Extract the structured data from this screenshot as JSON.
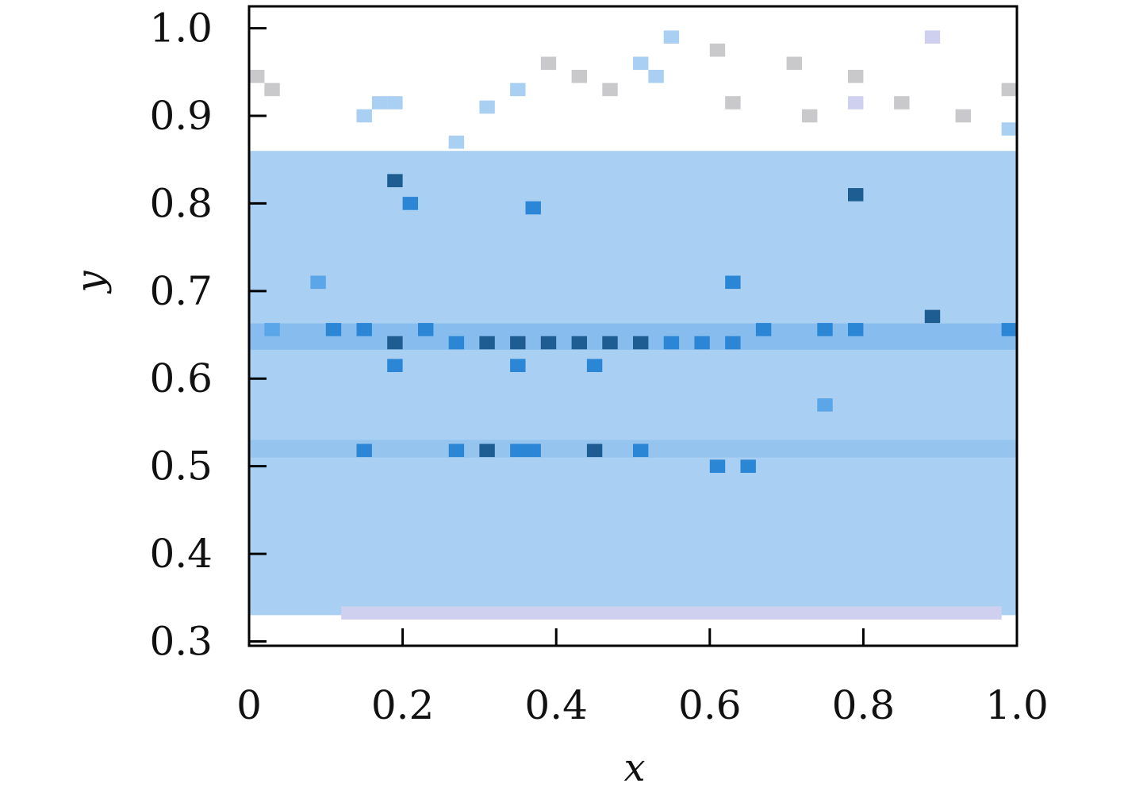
{
  "chart_data": {
    "type": "heatmap",
    "title": "",
    "xlabel": "x",
    "ylabel": "y",
    "xlim": [
      0.0,
      1.0
    ],
    "ylim": [
      0.295,
      1.025
    ],
    "x_ticks": [
      0.0,
      0.2,
      0.4,
      0.6,
      0.8,
      1.0
    ],
    "x_tick_labels": [
      "0",
      "0.2",
      "0.4",
      "0.6",
      "0.8",
      "1.0"
    ],
    "y_ticks": [
      0.3,
      0.4,
      0.5,
      0.6,
      0.7,
      0.8,
      0.9,
      1.0
    ],
    "y_tick_labels": [
      "0.3",
      "0.4",
      "0.5",
      "0.6",
      "0.7",
      "0.8",
      "0.9",
      "1.0"
    ],
    "grid": false,
    "legend": null,
    "colors": {
      "light": "#a9cff2",
      "medium": "#5aa6e8",
      "strong": "#2b86d6",
      "dark": "#1d5d92",
      "gray_bin": "#c9c9cc",
      "lavender_bin": "#cfd0ef"
    },
    "description_of_density": "2D histogram of (x, y) points; dense horizontal band near y≈0.64 and a secondary band near y≈0.52; sparse bins near y≈0.85–0.99 and y≈0.33–0.38",
    "bins": {
      "x_bin_width": 0.02,
      "y_bin_width": 0.015,
      "background_band": {
        "y_from": 0.33,
        "y_to": 0.86,
        "level": 1
      },
      "strong_cells": [
        {
          "x": 0.31,
          "y": 0.641,
          "level": 4
        },
        {
          "x": 0.35,
          "y": 0.641,
          "level": 4
        },
        {
          "x": 0.39,
          "y": 0.641,
          "level": 4
        },
        {
          "x": 0.43,
          "y": 0.641,
          "level": 4
        },
        {
          "x": 0.47,
          "y": 0.641,
          "level": 4
        },
        {
          "x": 0.51,
          "y": 0.641,
          "level": 4
        },
        {
          "x": 0.19,
          "y": 0.641,
          "level": 4
        },
        {
          "x": 0.27,
          "y": 0.641,
          "level": 3
        },
        {
          "x": 0.55,
          "y": 0.641,
          "level": 3
        },
        {
          "x": 0.59,
          "y": 0.641,
          "level": 3
        },
        {
          "x": 0.63,
          "y": 0.641,
          "level": 3
        },
        {
          "x": 0.11,
          "y": 0.656,
          "level": 3
        },
        {
          "x": 0.15,
          "y": 0.656,
          "level": 3
        },
        {
          "x": 0.23,
          "y": 0.656,
          "level": 3
        },
        {
          "x": 0.67,
          "y": 0.656,
          "level": 3
        },
        {
          "x": 0.75,
          "y": 0.656,
          "level": 3
        },
        {
          "x": 0.79,
          "y": 0.656,
          "level": 3
        },
        {
          "x": 0.89,
          "y": 0.671,
          "level": 4
        },
        {
          "x": 0.99,
          "y": 0.656,
          "level": 3
        },
        {
          "x": 0.03,
          "y": 0.656,
          "level": 2
        },
        {
          "x": 0.31,
          "y": 0.518,
          "level": 4
        },
        {
          "x": 0.45,
          "y": 0.518,
          "level": 4
        },
        {
          "x": 0.15,
          "y": 0.518,
          "level": 3
        },
        {
          "x": 0.27,
          "y": 0.518,
          "level": 3
        },
        {
          "x": 0.35,
          "y": 0.518,
          "level": 3
        },
        {
          "x": 0.37,
          "y": 0.518,
          "level": 3
        },
        {
          "x": 0.51,
          "y": 0.518,
          "level": 3
        },
        {
          "x": 0.19,
          "y": 0.826,
          "level": 4
        },
        {
          "x": 0.79,
          "y": 0.81,
          "level": 4
        },
        {
          "x": 0.21,
          "y": 0.8,
          "level": 3
        },
        {
          "x": 0.37,
          "y": 0.795,
          "level": 3
        },
        {
          "x": 0.63,
          "y": 0.71,
          "level": 3
        },
        {
          "x": 0.09,
          "y": 0.71,
          "level": 2
        },
        {
          "x": 0.19,
          "y": 0.615,
          "level": 3
        },
        {
          "x": 0.35,
          "y": 0.615,
          "level": 3
        },
        {
          "x": 0.45,
          "y": 0.615,
          "level": 3
        },
        {
          "x": 0.75,
          "y": 0.57,
          "level": 2
        },
        {
          "x": 0.61,
          "y": 0.5,
          "level": 3
        },
        {
          "x": 0.65,
          "y": 0.5,
          "level": 3
        }
      ],
      "top_sparse_cells": [
        {
          "x": 0.01,
          "y": 0.945,
          "tone": "gray"
        },
        {
          "x": 0.03,
          "y": 0.93,
          "tone": "gray"
        },
        {
          "x": 0.15,
          "y": 0.9,
          "tone": "light"
        },
        {
          "x": 0.17,
          "y": 0.915,
          "tone": "light"
        },
        {
          "x": 0.19,
          "y": 0.915,
          "tone": "light"
        },
        {
          "x": 0.27,
          "y": 0.87,
          "tone": "light"
        },
        {
          "x": 0.31,
          "y": 0.91,
          "tone": "light"
        },
        {
          "x": 0.35,
          "y": 0.93,
          "tone": "light"
        },
        {
          "x": 0.39,
          "y": 0.96,
          "tone": "gray"
        },
        {
          "x": 0.43,
          "y": 0.945,
          "tone": "gray"
        },
        {
          "x": 0.47,
          "y": 0.93,
          "tone": "gray"
        },
        {
          "x": 0.51,
          "y": 0.96,
          "tone": "light"
        },
        {
          "x": 0.53,
          "y": 0.945,
          "tone": "light"
        },
        {
          "x": 0.55,
          "y": 0.99,
          "tone": "light"
        },
        {
          "x": 0.61,
          "y": 0.975,
          "tone": "gray"
        },
        {
          "x": 0.63,
          "y": 0.915,
          "tone": "gray"
        },
        {
          "x": 0.71,
          "y": 0.96,
          "tone": "gray"
        },
        {
          "x": 0.73,
          "y": 0.9,
          "tone": "gray"
        },
        {
          "x": 0.79,
          "y": 0.945,
          "tone": "gray"
        },
        {
          "x": 0.79,
          "y": 0.915,
          "tone": "lavender"
        },
        {
          "x": 0.89,
          "y": 0.99,
          "tone": "lavender"
        },
        {
          "x": 0.85,
          "y": 0.915,
          "tone": "gray"
        },
        {
          "x": 0.93,
          "y": 0.9,
          "tone": "gray"
        },
        {
          "x": 0.99,
          "y": 0.93,
          "tone": "gray"
        },
        {
          "x": 0.99,
          "y": 0.885,
          "tone": "light"
        }
      ],
      "bottom_sparse_band": {
        "y_from": 0.325,
        "y_to": 0.34,
        "x_from": 0.12,
        "x_to": 0.98,
        "tone": "lavender"
      }
    }
  }
}
